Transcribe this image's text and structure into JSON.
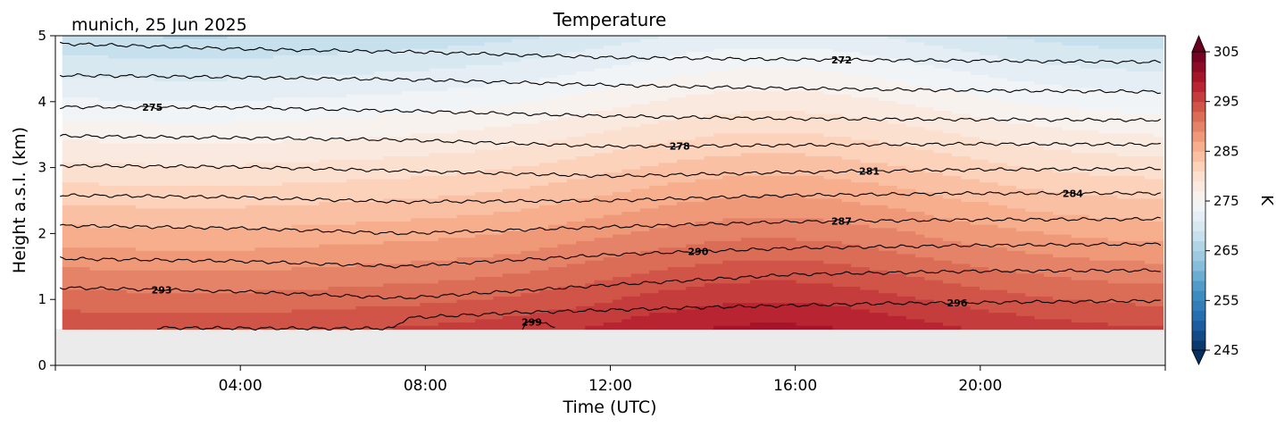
{
  "chart_data": {
    "type": "heatmap",
    "title": "Temperature",
    "location_label": "munich, 25 Jun 2025",
    "xlabel": "Time (UTC)",
    "ylabel": "Height a.s.l. (km)",
    "x_unit": "hours UTC",
    "xlim": [
      0,
      24
    ],
    "x_ticks": [
      {
        "value": 4,
        "label": "04:00"
      },
      {
        "value": 8,
        "label": "08:00"
      },
      {
        "value": 12,
        "label": "12:00"
      },
      {
        "value": 16,
        "label": "16:00"
      },
      {
        "value": 20,
        "label": "20:00"
      }
    ],
    "ylim": [
      0,
      5
    ],
    "y_ticks": [
      0,
      1,
      2,
      3,
      4,
      5
    ],
    "data_bottom_km": 0.55,
    "below_data_color": "#ebebeb",
    "colorbar": {
      "label": "K",
      "range": [
        245,
        305
      ],
      "ticks": [
        245,
        255,
        265,
        275,
        285,
        295,
        305
      ],
      "extend": "both",
      "colormap": "RdBu_r"
    },
    "isotherms": [
      {
        "value": 272,
        "label": "272",
        "label_time": 17.0,
        "points": [
          [
            0.1,
            4.88
          ],
          [
            4,
            4.8
          ],
          [
            8,
            4.75
          ],
          [
            12,
            4.67
          ],
          [
            16,
            4.64
          ],
          [
            20,
            4.62
          ],
          [
            23.9,
            4.6
          ]
        ]
      },
      {
        "value": 273.5,
        "label": "",
        "points": [
          [
            0.1,
            4.4
          ],
          [
            4,
            4.37
          ],
          [
            8,
            4.33
          ],
          [
            12,
            4.25
          ],
          [
            16,
            4.2
          ],
          [
            20,
            4.17
          ],
          [
            23.9,
            4.15
          ]
        ]
      },
      {
        "value": 275,
        "label": "275",
        "label_time": 2.1,
        "points": [
          [
            0.1,
            3.92
          ],
          [
            4,
            3.91
          ],
          [
            7.5,
            3.86
          ],
          [
            12,
            3.78
          ],
          [
            16,
            3.74
          ],
          [
            20,
            3.73
          ],
          [
            23.9,
            3.72
          ]
        ]
      },
      {
        "value": 278,
        "label": "278",
        "label_time": 13.5,
        "points": [
          [
            0.1,
            3.48
          ],
          [
            4,
            3.45
          ],
          [
            7.5,
            3.42
          ],
          [
            12,
            3.32
          ],
          [
            16,
            3.34
          ],
          [
            20,
            3.36
          ],
          [
            23.9,
            3.35
          ]
        ]
      },
      {
        "value": 281,
        "label": "281",
        "label_time": 17.6,
        "points": [
          [
            0.1,
            3.03
          ],
          [
            4,
            3.01
          ],
          [
            7.5,
            2.95
          ],
          [
            12,
            2.87
          ],
          [
            16,
            2.93
          ],
          [
            20,
            2.97
          ],
          [
            23.9,
            2.98
          ]
        ]
      },
      {
        "value": 284,
        "label": "284",
        "label_time": 22.0,
        "points": [
          [
            0.1,
            2.58
          ],
          [
            4,
            2.55
          ],
          [
            7.5,
            2.48
          ],
          [
            12,
            2.5
          ],
          [
            16,
            2.58
          ],
          [
            20,
            2.61
          ],
          [
            23.9,
            2.61
          ]
        ]
      },
      {
        "value": 287,
        "label": "287",
        "label_time": 17.0,
        "points": [
          [
            0.1,
            2.12
          ],
          [
            4,
            2.08
          ],
          [
            7.5,
            2.0
          ],
          [
            12,
            2.1
          ],
          [
            16,
            2.18
          ],
          [
            20,
            2.21
          ],
          [
            23.9,
            2.22
          ]
        ]
      },
      {
        "value": 290,
        "label": "290",
        "label_time": 13.9,
        "points": [
          [
            0.1,
            1.62
          ],
          [
            4,
            1.58
          ],
          [
            7.5,
            1.5
          ],
          [
            12,
            1.68
          ],
          [
            16,
            1.78
          ],
          [
            20,
            1.82
          ],
          [
            23.9,
            1.84
          ]
        ]
      },
      {
        "value": 293,
        "label": "293",
        "label_time": 2.3,
        "points": [
          [
            0.1,
            1.18
          ],
          [
            4,
            1.12
          ],
          [
            7.5,
            1.02
          ],
          [
            12,
            1.22
          ],
          [
            16,
            1.38
          ],
          [
            20,
            1.43
          ],
          [
            23.9,
            1.44
          ]
        ]
      },
      {
        "value": 296,
        "label": "296",
        "label_time": 19.5,
        "points": [
          [
            2.2,
            0.57
          ],
          [
            5,
            0.56
          ],
          [
            7.3,
            0.56
          ],
          [
            7.6,
            0.72
          ],
          [
            10,
            0.8
          ],
          [
            14,
            0.88
          ],
          [
            18,
            0.94
          ],
          [
            23.9,
            0.98
          ]
        ]
      },
      {
        "value": 299,
        "label": "299",
        "label_time": 10.3,
        "points": [
          [
            10.1,
            0.56
          ],
          [
            10.2,
            0.66
          ],
          [
            10.6,
            0.66
          ],
          [
            10.8,
            0.56
          ]
        ]
      }
    ]
  }
}
